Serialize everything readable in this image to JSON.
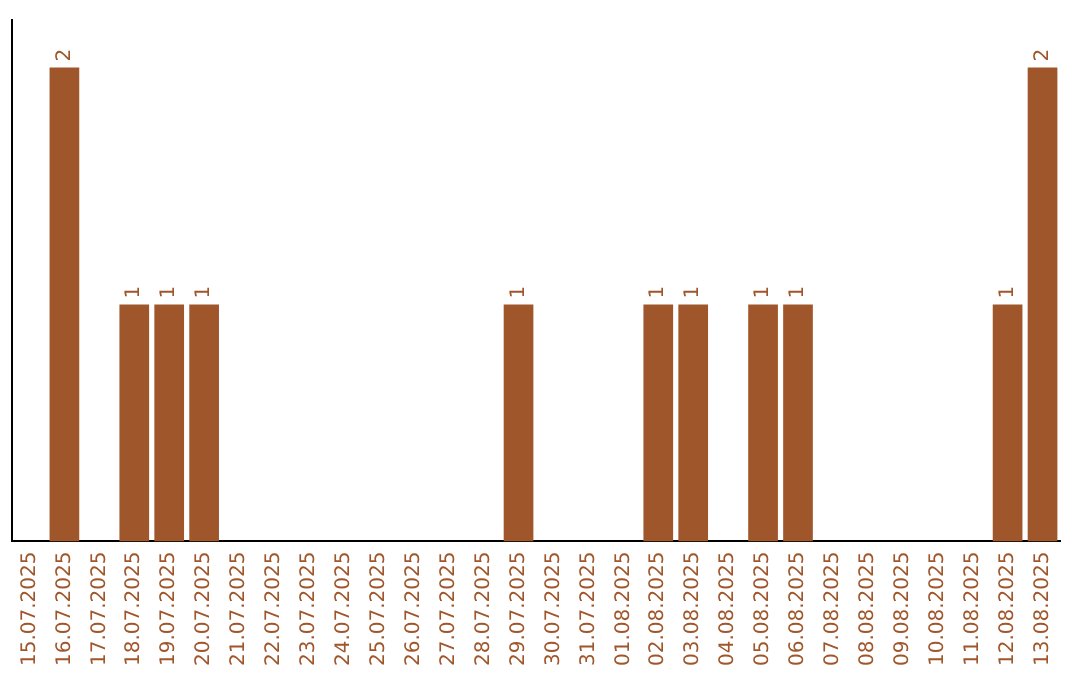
{
  "chart_data": {
    "type": "bar",
    "categories": [
      "15.07.2025",
      "16.07.2025",
      "17.07.2025",
      "18.07.2025",
      "19.07.2025",
      "20.07.2025",
      "21.07.2025",
      "22.07.2025",
      "23.07.2025",
      "24.07.2025",
      "25.07.2025",
      "26.07.2025",
      "27.07.2025",
      "28.07.2025",
      "29.07.2025",
      "30.07.2025",
      "31.07.2025",
      "01.08.2025",
      "02.08.2025",
      "03.08.2025",
      "04.08.2025",
      "05.08.2025",
      "06.08.2025",
      "07.08.2025",
      "08.08.2025",
      "09.08.2025",
      "10.08.2025",
      "11.08.2025",
      "12.08.2025",
      "13.08.2025"
    ],
    "values": [
      0,
      2,
      0,
      1,
      1,
      1,
      0,
      0,
      0,
      0,
      0,
      0,
      0,
      0,
      1,
      0,
      0,
      0,
      1,
      1,
      0,
      1,
      1,
      0,
      0,
      0,
      0,
      0,
      1,
      2
    ],
    "value_labels": [
      null,
      "2",
      null,
      "1",
      "1",
      "1",
      null,
      null,
      null,
      null,
      null,
      null,
      null,
      null,
      "1",
      null,
      null,
      null,
      "1",
      "1",
      null,
      "1",
      "1",
      null,
      null,
      null,
      null,
      null,
      "1",
      "2"
    ],
    "color": "#a0562b",
    "grid": false,
    "legend": false,
    "tick_labels": "x"
  }
}
